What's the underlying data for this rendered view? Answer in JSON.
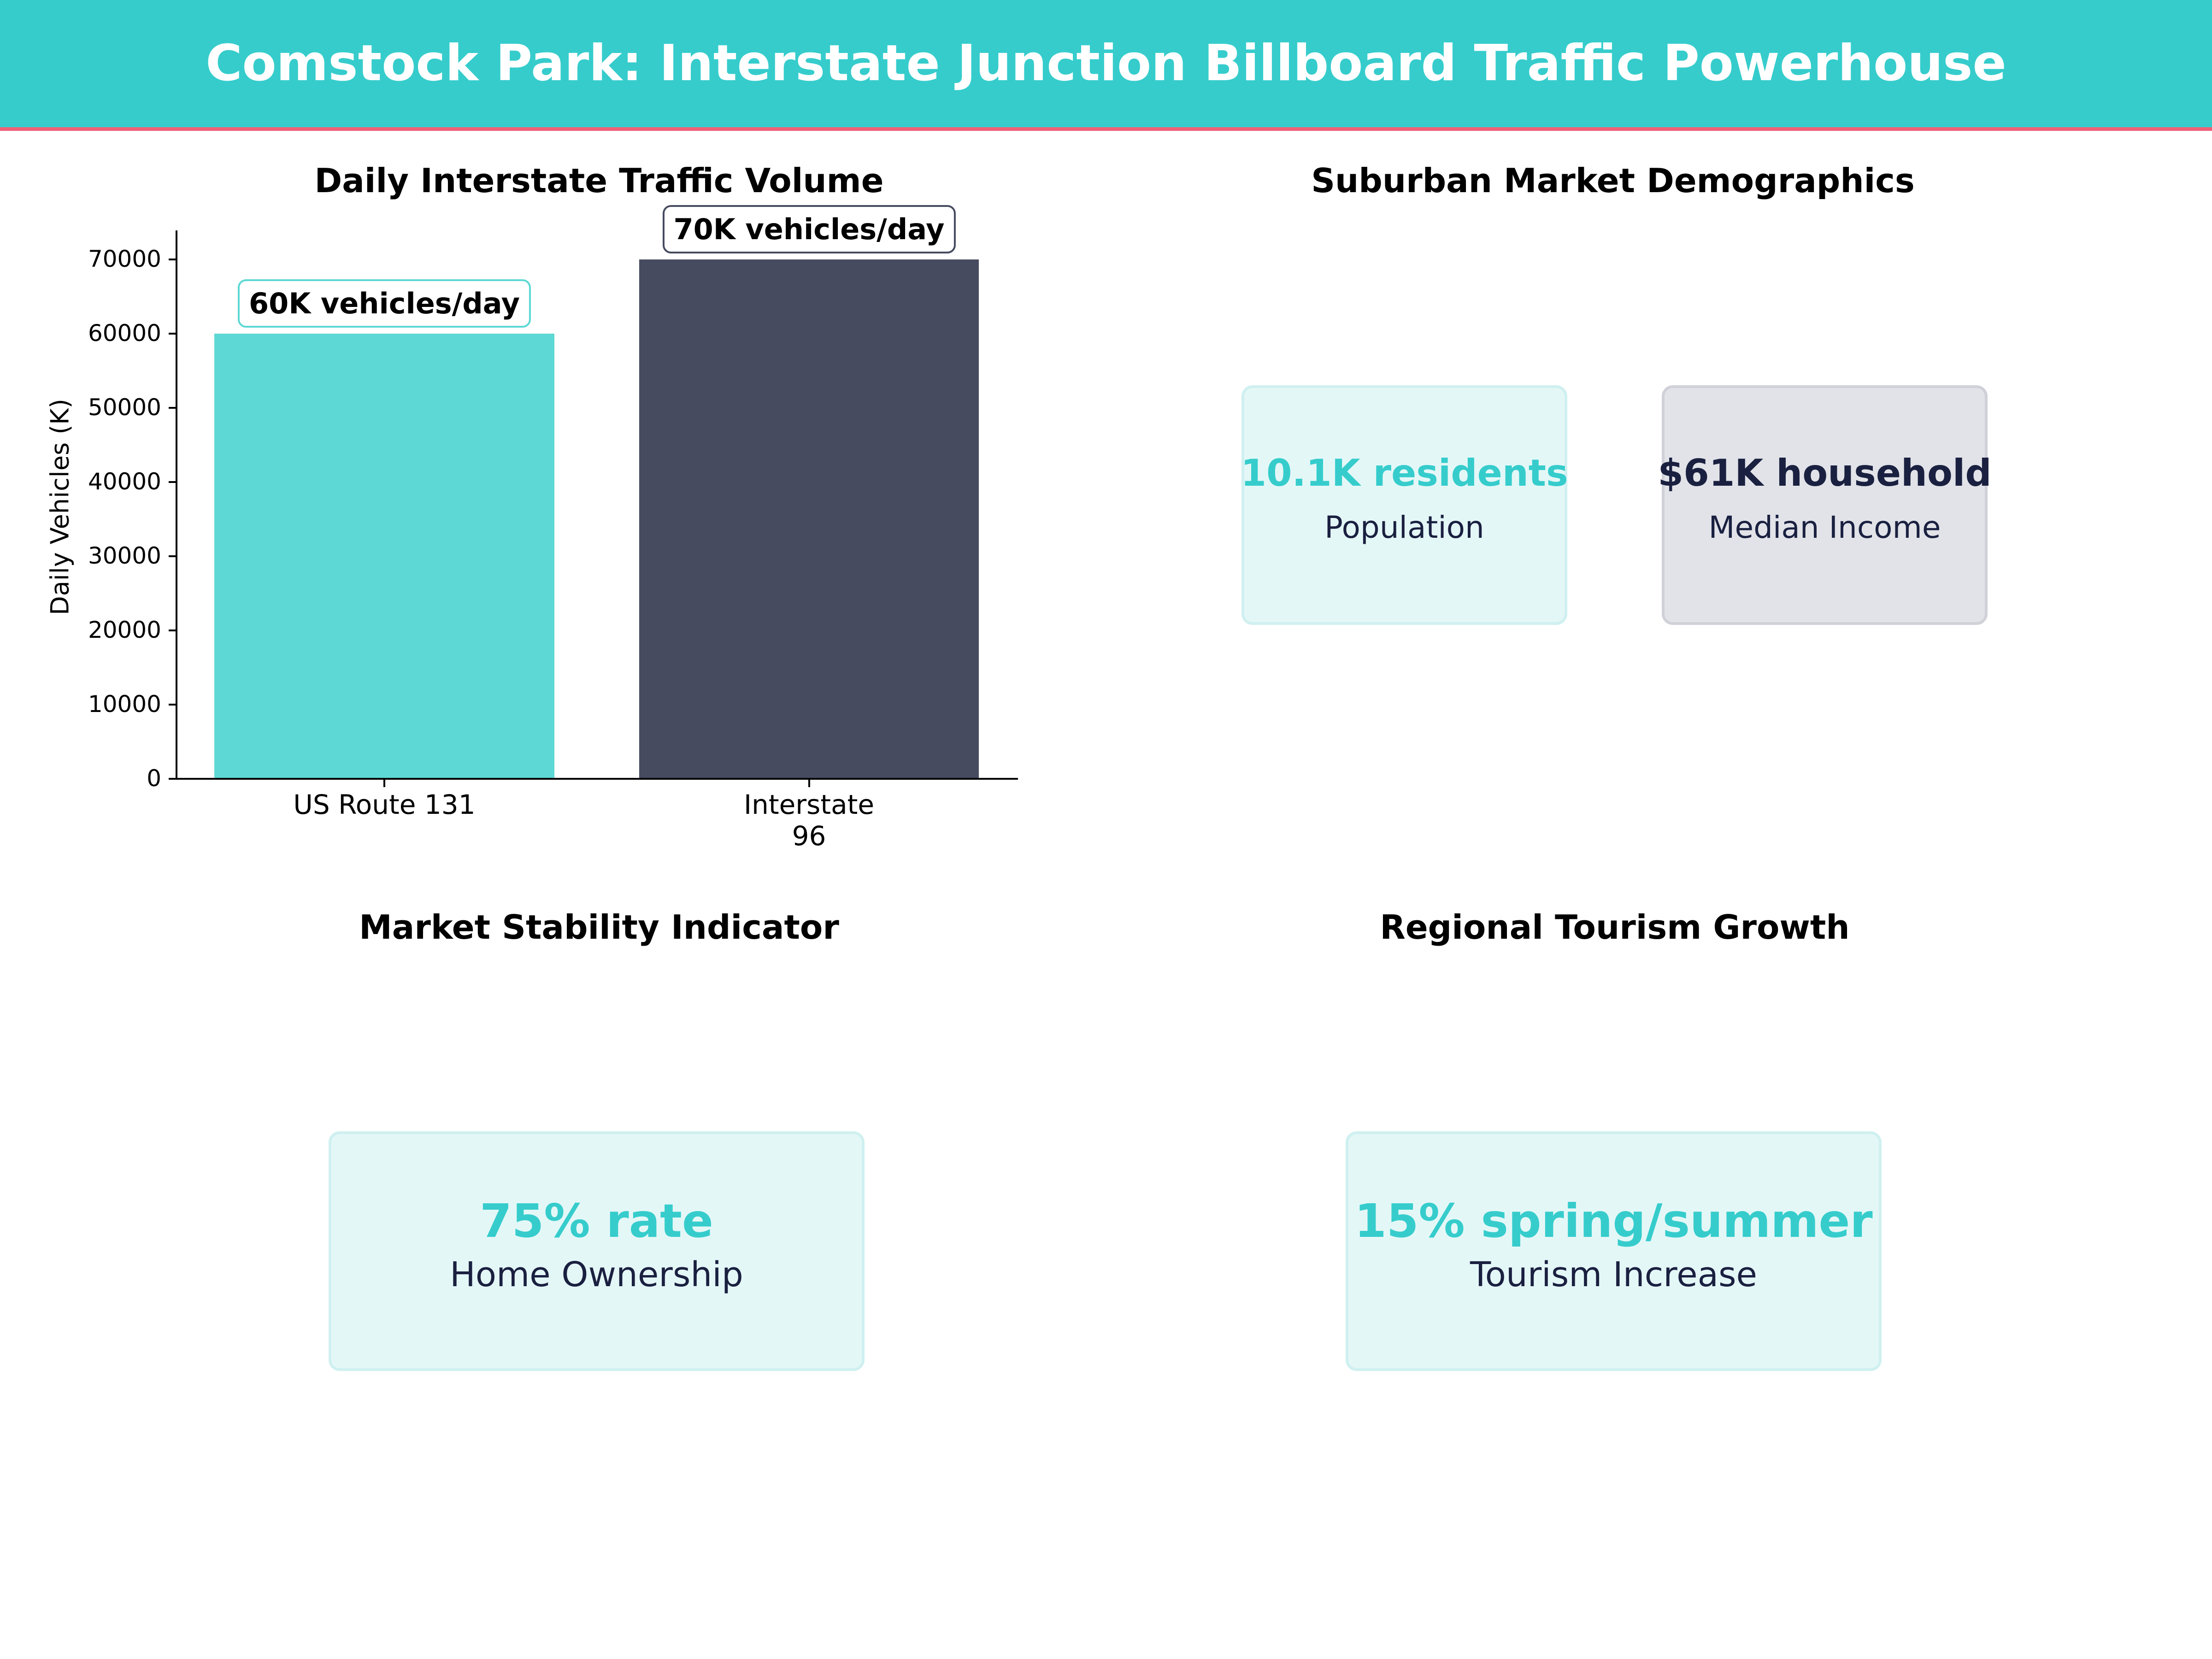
{
  "header": {
    "title": "Comstock Park: Interstate Junction Billboard Traffic Powerhouse"
  },
  "colors": {
    "accent": "#36CCCC",
    "header_line": "#EE6077",
    "bar_light": "#5DD8D4",
    "bar_dark": "#464B60",
    "navy": "#1A2040",
    "card_teal_bg": "#E4F7F7",
    "card_gray_bg": "#E1E3E8"
  },
  "panels": {
    "traffic": {
      "title": "Daily Interstate Traffic Volume"
    },
    "demographics": {
      "title": "Suburban Market Demographics",
      "cards": [
        {
          "value": "10.1K residents",
          "label": "Population"
        },
        {
          "value": "$61K household",
          "label": "Median Income"
        }
      ]
    },
    "stability": {
      "title": "Market Stability Indicator",
      "card": {
        "value": "75% rate",
        "label": "Home Ownership"
      }
    },
    "tourism": {
      "title": "Regional Tourism Growth",
      "card": {
        "value": "15% spring/summer",
        "label": "Tourism Increase"
      }
    }
  },
  "chart_data": {
    "type": "bar",
    "title": "Daily Interstate Traffic Volume",
    "categories": [
      "US Route 131",
      "Interstate\n96"
    ],
    "category_lines": [
      [
        "US Route 131"
      ],
      [
        "Interstate",
        "96"
      ]
    ],
    "values": [
      60000,
      70000
    ],
    "annotations": [
      "60K vehicles/day",
      "70K vehicles/day"
    ],
    "xlabel": "",
    "ylabel": "Daily Vehicles (K)",
    "yticks": [
      "0",
      "10000",
      "20000",
      "30000",
      "40000",
      "50000",
      "60000",
      "70000"
    ],
    "ylim": [
      0,
      73500
    ],
    "grid": false,
    "legend": "none"
  }
}
